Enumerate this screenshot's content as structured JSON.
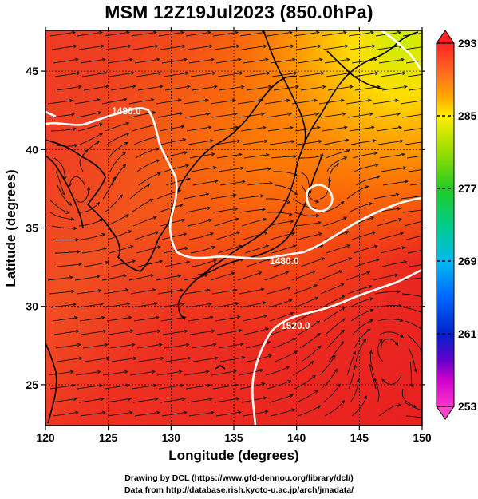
{
  "title": "MSM 12Z19Jul2023 (850.0hPa)",
  "x_axis": {
    "label": "Longitude (degrees)",
    "range": [
      120,
      150
    ],
    "ticks": [
      120,
      125,
      130,
      135,
      140,
      145,
      150
    ],
    "tick_labels": [
      "120",
      "125",
      "130",
      "135",
      "140",
      "145",
      "150"
    ]
  },
  "y_axis": {
    "label": "Latitude  (degrees)",
    "range": [
      22.4,
      47.6
    ],
    "ticks": [
      25,
      30,
      35,
      40,
      45
    ],
    "tick_labels": [
      "25",
      "30",
      "35",
      "40",
      "45"
    ]
  },
  "colorbar": {
    "range": [
      253,
      293
    ],
    "labels": [
      "293",
      "285",
      "277",
      "269",
      "261",
      "253"
    ],
    "label_values": [
      293,
      285,
      277,
      269,
      261,
      253
    ],
    "stops": [
      {
        "v": 253,
        "color": "#ff33cc"
      },
      {
        "v": 256,
        "color": "#cc00cc"
      },
      {
        "v": 258,
        "color": "#6600cc"
      },
      {
        "v": 261,
        "color": "#0022cc"
      },
      {
        "v": 265,
        "color": "#0066ff"
      },
      {
        "v": 269,
        "color": "#00bbee"
      },
      {
        "v": 273,
        "color": "#00cc88"
      },
      {
        "v": 277,
        "color": "#22cc22"
      },
      {
        "v": 281,
        "color": "#99dd00"
      },
      {
        "v": 285,
        "color": "#ffee00"
      },
      {
        "v": 287,
        "color": "#ffaa00"
      },
      {
        "v": 290,
        "color": "#ff6622"
      },
      {
        "v": 293,
        "color": "#ff2222"
      }
    ]
  },
  "contour_labels": [
    "1480.0",
    "1480.0",
    "1520.0"
  ],
  "credits": {
    "line1": "Drawing by DCL (https://www.gfd-dennou.org/library/dcl/)",
    "line2": "Data from http://database.rish.kyoto-u.ac.jp/arch/jmadata/"
  }
}
